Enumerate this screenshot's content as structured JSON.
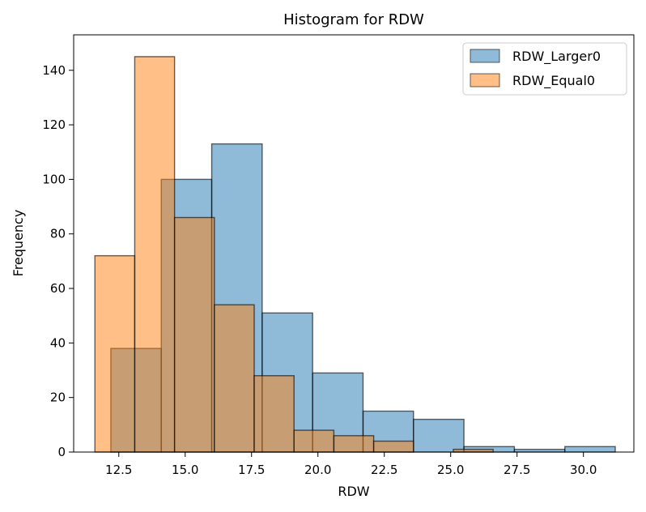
{
  "chart_data": {
    "type": "bar",
    "title": "Histogram for RDW",
    "xlabel": "RDW",
    "ylabel": "Frequency",
    "xlim": [
      10.8,
      31.9
    ],
    "ylim": [
      0,
      153
    ],
    "xticks": [
      12.5,
      15.0,
      17.5,
      20.0,
      22.5,
      25.0,
      27.5,
      30.0
    ],
    "xtick_labels": [
      "12.5",
      "15.0",
      "17.5",
      "20.0",
      "22.5",
      "25.0",
      "27.5",
      "30.0"
    ],
    "yticks": [
      0,
      20,
      40,
      60,
      80,
      100,
      120,
      140
    ],
    "ytick_labels": [
      "0",
      "20",
      "40",
      "60",
      "80",
      "100",
      "120",
      "140"
    ],
    "legend_position": "top-right",
    "series": [
      {
        "name": "RDW_Larger0",
        "color": "#1f77b4",
        "bin_edges": [
          12.2,
          14.1,
          16.0,
          17.9,
          19.8,
          21.7,
          23.6,
          25.5,
          27.4,
          29.3,
          31.2
        ],
        "values": [
          38,
          100,
          113,
          51,
          29,
          15,
          12,
          2,
          1,
          2
        ]
      },
      {
        "name": "RDW_Equal0",
        "color": "#ff7f0e",
        "bin_edges": [
          11.6,
          13.1,
          14.6,
          16.1,
          17.6,
          19.1,
          20.6,
          22.1,
          23.6,
          25.1,
          26.6
        ],
        "values": [
          72,
          145,
          86,
          54,
          28,
          8,
          6,
          4,
          0,
          1
        ]
      }
    ]
  }
}
